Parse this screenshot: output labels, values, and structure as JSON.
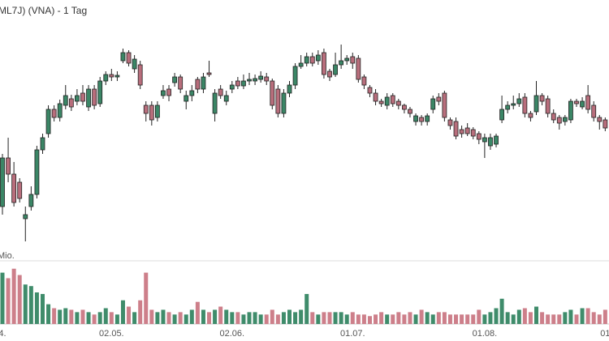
{
  "chart_data": {
    "type": "candlestick",
    "title": "ML7J) (VNA) - 1 Tag",
    "up_color": "#3b8666",
    "down_color": "#b86e7c",
    "ylim": [
      0,
      300
    ],
    "categories": [
      "4.",
      null,
      null,
      null,
      null,
      null,
      null,
      null,
      null,
      null,
      null,
      null,
      null,
      null,
      null,
      null,
      null,
      null,
      null,
      "02.05.",
      null,
      null,
      null,
      null,
      null,
      null,
      null,
      null,
      null,
      null,
      null,
      null,
      null,
      null,
      null,
      null,
      null,
      null,
      null,
      null,
      "02.06.",
      null,
      null,
      null,
      null,
      null,
      null,
      null,
      null,
      null,
      null,
      null,
      null,
      null,
      null,
      null,
      null,
      null,
      null,
      null,
      null,
      "01.07.",
      null,
      null,
      null,
      null,
      null,
      null,
      null,
      null,
      null,
      null,
      null,
      null,
      null,
      null,
      null,
      null,
      null,
      null,
      null,
      null,
      null,
      null,
      "01.08.",
      null,
      null,
      null,
      null,
      null,
      null,
      null,
      null,
      null,
      null,
      null,
      null,
      null,
      null,
      null,
      null,
      null,
      null,
      null,
      null,
      "01"
    ],
    "ohlc": [
      [
        45,
        110,
        35,
        105
      ],
      [
        105,
        130,
        75,
        85
      ],
      [
        85,
        100,
        45,
        50
      ],
      [
        75,
        80,
        50,
        55
      ],
      [
        30,
        45,
        2,
        35
      ],
      [
        45,
        70,
        40,
        60
      ],
      [
        60,
        120,
        55,
        115
      ],
      [
        115,
        135,
        110,
        130
      ],
      [
        135,
        170,
        130,
        165
      ],
      [
        165,
        170,
        150,
        155
      ],
      [
        155,
        177,
        150,
        172
      ],
      [
        170,
        195,
        165,
        182
      ],
      [
        178,
        183,
        163,
        168
      ],
      [
        175,
        190,
        170,
        182
      ],
      [
        185,
        195,
        170,
        175
      ],
      [
        168,
        195,
        163,
        190
      ],
      [
        190,
        195,
        165,
        170
      ],
      [
        172,
        205,
        168,
        200
      ],
      [
        200,
        212,
        195,
        208
      ],
      [
        208,
        215,
        200,
        205
      ],
      [
        205,
        212,
        200,
        207
      ],
      [
        225,
        240,
        222,
        235
      ],
      [
        235,
        238,
        218,
        222
      ],
      [
        215,
        232,
        210,
        227
      ],
      [
        220,
        225,
        190,
        195
      ],
      [
        170,
        175,
        150,
        160
      ],
      [
        170,
        175,
        145,
        152
      ],
      [
        155,
        175,
        150,
        170
      ],
      [
        182,
        195,
        178,
        188
      ],
      [
        190,
        195,
        175,
        182
      ],
      [
        198,
        210,
        193,
        205
      ],
      [
        205,
        208,
        185,
        190
      ],
      [
        175,
        188,
        165,
        182
      ],
      [
        182,
        195,
        175,
        188
      ],
      [
        202,
        205,
        185,
        190
      ],
      [
        190,
        210,
        185,
        205
      ],
      [
        210,
        225,
        205,
        208
      ],
      [
        160,
        190,
        150,
        185
      ],
      [
        190,
        195,
        178,
        182
      ],
      [
        175,
        188,
        170,
        182
      ],
      [
        190,
        200,
        185,
        195
      ],
      [
        200,
        205,
        190,
        194
      ],
      [
        194,
        208,
        190,
        200
      ],
      [
        200,
        210,
        195,
        202
      ],
      [
        200,
        208,
        195,
        203
      ],
      [
        202,
        212,
        198,
        206
      ],
      [
        205,
        210,
        195,
        200
      ],
      [
        200,
        203,
        165,
        170
      ],
      [
        190,
        195,
        155,
        160
      ],
      [
        160,
        190,
        155,
        185
      ],
      [
        185,
        200,
        180,
        195
      ],
      [
        195,
        222,
        190,
        218
      ],
      [
        218,
        232,
        215,
        222
      ],
      [
        222,
        235,
        218,
        230
      ],
      [
        230,
        235,
        218,
        222
      ],
      [
        225,
        238,
        220,
        232
      ],
      [
        235,
        240,
        203,
        208
      ],
      [
        212,
        215,
        200,
        205
      ],
      [
        208,
        235,
        205,
        220
      ],
      [
        220,
        245,
        215,
        225
      ],
      [
        225,
        232,
        220,
        228
      ],
      [
        230,
        235,
        215,
        222
      ],
      [
        228,
        232,
        198,
        202
      ],
      [
        205,
        208,
        190,
        195
      ],
      [
        192,
        195,
        180,
        185
      ],
      [
        185,
        190,
        170,
        175
      ],
      [
        175,
        178,
        168,
        172
      ],
      [
        170,
        185,
        165,
        180
      ],
      [
        182,
        185,
        168,
        172
      ],
      [
        175,
        178,
        165,
        170
      ],
      [
        170,
        172,
        160,
        165
      ],
      [
        165,
        168,
        155,
        160
      ],
      [
        150,
        160,
        145,
        157
      ],
      [
        155,
        158,
        145,
        150
      ],
      [
        150,
        160,
        145,
        157
      ],
      [
        165,
        182,
        160,
        178
      ],
      [
        180,
        185,
        170,
        175
      ],
      [
        185,
        188,
        150,
        155
      ],
      [
        152,
        155,
        140,
        145
      ],
      [
        150,
        155,
        128,
        132
      ],
      [
        140,
        145,
        130,
        135
      ],
      [
        142,
        148,
        132,
        135
      ],
      [
        140,
        143,
        128,
        132
      ],
      [
        135,
        138,
        122,
        128
      ],
      [
        125,
        135,
        105,
        130
      ],
      [
        120,
        135,
        115,
        130
      ],
      [
        122,
        135,
        118,
        132
      ],
      [
        152,
        182,
        148,
        165
      ],
      [
        165,
        175,
        160,
        170
      ],
      [
        170,
        182,
        165,
        172
      ],
      [
        172,
        185,
        168,
        178
      ],
      [
        180,
        185,
        155,
        160
      ],
      [
        160,
        163,
        150,
        155
      ],
      [
        162,
        200,
        158,
        182
      ],
      [
        182,
        185,
        170,
        175
      ],
      [
        178,
        182,
        155,
        160
      ],
      [
        160,
        165,
        148,
        152
      ],
      [
        155,
        158,
        140,
        148
      ],
      [
        150,
        158,
        145,
        155
      ],
      [
        152,
        178,
        148,
        175
      ],
      [
        175,
        178,
        168,
        172
      ],
      [
        168,
        180,
        165,
        175
      ],
      [
        182,
        195,
        160,
        165
      ],
      [
        170,
        175,
        150,
        155
      ],
      [
        155,
        158,
        140,
        150
      ],
      [
        152,
        155,
        138,
        142
      ]
    ],
    "volume": {
      "label": "Mio.",
      "ylim": [
        0,
        80
      ],
      "up_color": "#3f8c6b",
      "down_color": "#cd7f8a",
      "values": [
        65,
        58,
        70,
        62,
        50,
        48,
        40,
        38,
        25,
        20,
        18,
        20,
        18,
        15,
        18,
        15,
        12,
        15,
        20,
        15,
        12,
        30,
        22,
        15,
        30,
        65,
        18,
        15,
        18,
        15,
        12,
        15,
        12,
        18,
        28,
        18,
        15,
        18,
        22,
        18,
        15,
        15,
        12,
        15,
        15,
        12,
        12,
        18,
        12,
        15,
        18,
        15,
        18,
        38,
        15,
        12,
        15,
        15,
        15,
        15,
        12,
        15,
        12,
        12,
        10,
        12,
        15,
        12,
        12,
        15,
        12,
        15,
        12,
        18,
        15,
        12,
        15,
        15,
        12,
        12,
        12,
        12,
        12,
        18,
        12,
        15,
        20,
        32,
        15,
        12,
        18,
        20,
        15,
        22,
        15,
        12,
        12,
        12,
        15,
        18,
        12,
        20,
        20,
        15,
        12,
        18
      ]
    }
  }
}
